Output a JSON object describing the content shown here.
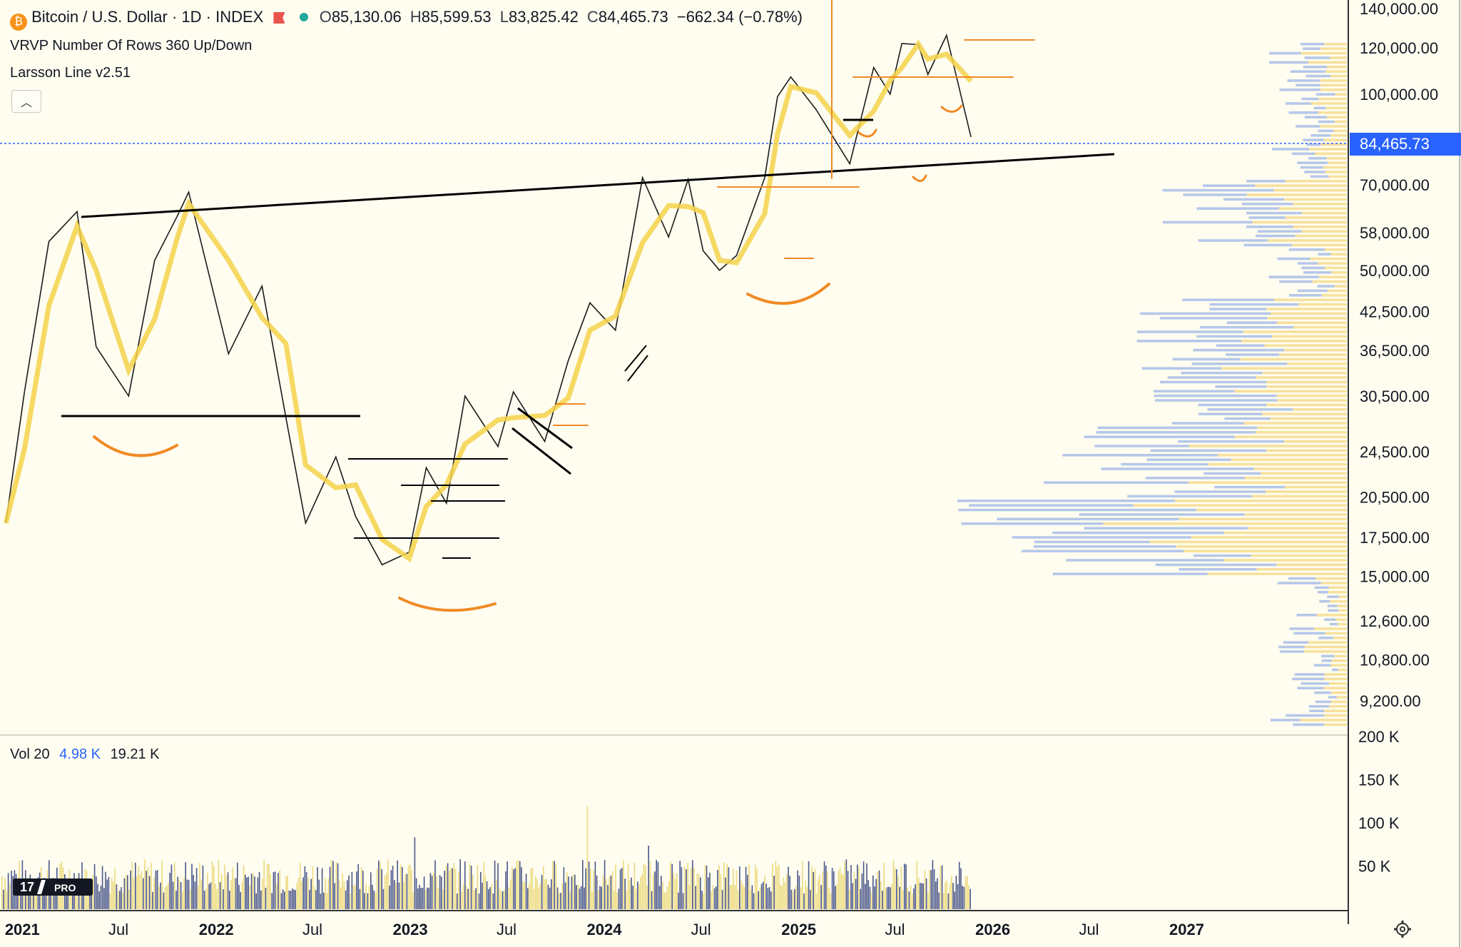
{
  "header": {
    "symbol_icon": "bitcoin-coin-icon",
    "title": "Bitcoin / U.S. Dollar · 1D · INDEX",
    "flag_icon": "red-flag-icon",
    "status_dot_color": "#26a69a",
    "ohlc": {
      "o_label": "O",
      "o": "85,130.06",
      "h_label": "H",
      "h": "85,599.53",
      "l_label": "L",
      "l": "83,825.42",
      "c_label": "C",
      "c": "84,465.73",
      "change": "−662.34 (−0.78%)"
    }
  },
  "indicators": {
    "vrvp": "VRVP Number Of Rows 360 Up/Down",
    "larsson": "Larsson Line v2.51"
  },
  "volume_legend": {
    "label": "Vol 20",
    "v1": "4.98 K",
    "v2": "19.21 K"
  },
  "current_price": "84,465.73",
  "colors": {
    "accent": "#2962ff",
    "larsson_bull": "#f5d24a",
    "larsson_bear": "#5b4de0",
    "annotation_orange": "#f08a24",
    "trendline": "#000000",
    "volume_up": "#e9d36a",
    "volume_down": "#2b3a78"
  },
  "branding": {
    "logo": "tradingview-logo",
    "badge": "PRO"
  },
  "settings_icon": "gear-icon",
  "chart_data": {
    "type": "line",
    "series": [
      {
        "name": "",
        "x": [
          "2020-12-01",
          "2021-01-05",
          "2021-02-20",
          "2021-04-14",
          "2021-05-20",
          "2021-07-20",
          "2021-09-07",
          "2021-10-20",
          "2021-11-10",
          "2022-01-24",
          "2022-03-28",
          "2022-05-12",
          "2022-06-18",
          "2022-08-14",
          "2022-09-20",
          "2022-11-09",
          "2022-12-30",
          "2023-01-31",
          "2023-03-10",
          "2023-04-14",
          "2023-06-15",
          "2023-07-14",
          "2023-09-11",
          "2023-10-25",
          "2023-12-05",
          "2024-01-22",
          "2024-03-13",
          "2024-05-01",
          "2024-06-07",
          "2024-07-05",
          "2024-08-05",
          "2024-09-06",
          "2024-10-29",
          "2024-11-22",
          "2024-12-17",
          "2025-02-03",
          "2025-04-07",
          "2025-05-22",
          "2025-06-22",
          "2025-07-14",
          "2025-08-14",
          "2025-09-01",
          "2025-10-06",
          "2025-11-21"
        ],
        "values": [
          18500,
          31000,
          56000,
          63000,
          37000,
          30500,
          52000,
          62000,
          68000,
          36000,
          47000,
          28000,
          18500,
          24000,
          19000,
          15700,
          16500,
          23000,
          20000,
          30500,
          25000,
          31000,
          25500,
          35000,
          44000,
          39500,
          72000,
          57000,
          71500,
          54000,
          50000,
          53000,
          72000,
          99000,
          107000,
          94000,
          76000,
          111000,
          100000,
          122000,
          121500,
          108000,
          126000,
          84465.73
        ]
      }
    ],
    "title": "Bitcoin / U.S. Dollar · 1D · INDEX",
    "xlabel": "",
    "ylabel": "",
    "y_scale": "log",
    "ylim": [
      8500,
      140000
    ],
    "y_ticks": [
      "140,000.00",
      "120,000.00",
      "100,000.00",
      "70,000.00",
      "58,000.00",
      "50,000.00",
      "42,500.00",
      "36,500.00",
      "30,500.00",
      "24,500.00",
      "20,500.00",
      "17,500.00",
      "15,000.00",
      "12,600.00",
      "10,800.00",
      "9,200.00"
    ],
    "x_ticks": [
      "2021",
      "Jul",
      "2022",
      "Jul",
      "2023",
      "Jul",
      "2024",
      "Jul",
      "2025",
      "Jul",
      "2026",
      "Jul",
      "2027"
    ],
    "volume_ticks": [
      "200 K",
      "150 K",
      "100 K",
      "50 K"
    ],
    "volume_ylim": [
      0,
      200000
    ],
    "grid": false,
    "legend": "top-left"
  }
}
